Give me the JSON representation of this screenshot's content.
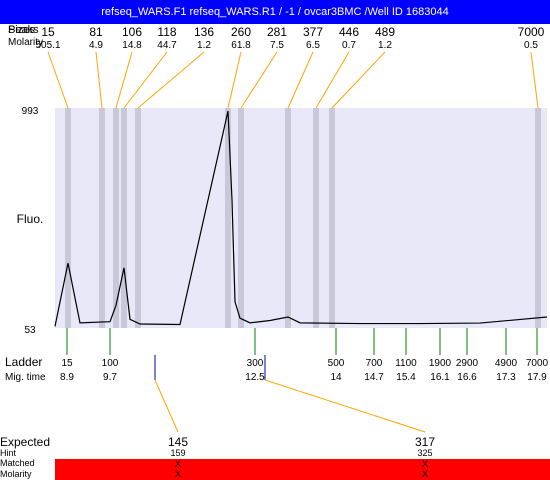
{
  "window": {
    "title": "refseq_WARS.F1  refseq_WARS.R1 / -1 / ovcar3BMC  /Well ID 1683044"
  },
  "header": {
    "sizes_label": "Sizes",
    "peaks_label": "Peaks",
    "molarity_label": "Molarity"
  },
  "peaks": [
    {
      "size": "15",
      "molarity": "505.1"
    },
    {
      "size": "81",
      "molarity": "4.9"
    },
    {
      "size": "106",
      "molarity": "14.8"
    },
    {
      "size": "118",
      "molarity": "44.7"
    },
    {
      "size": "136",
      "molarity": "1.2"
    },
    {
      "size": "260",
      "molarity": "61.8"
    },
    {
      "size": "281",
      "molarity": "7.5"
    },
    {
      "size": "377",
      "molarity": "6.5"
    },
    {
      "size": "446",
      "molarity": "0.7"
    },
    {
      "size": "489",
      "molarity": "1.2"
    },
    {
      "size": "7000",
      "molarity": "0.5"
    }
  ],
  "plot": {
    "y_axis_label": "Fluo.",
    "y_max_label": "993",
    "y_min_label": "53",
    "colors": {
      "background": "#e8e8f8",
      "trace": "#000000",
      "band": "#c8c8d8",
      "leader": "#ffa500",
      "ladder_tick": "#008000"
    }
  },
  "ladder": {
    "ladder_label": "Ladder",
    "migtime_label": "Mig. time",
    "markers": [
      {
        "size": "15",
        "time": "8.9"
      },
      {
        "size": "100",
        "time": "9.7"
      },
      {
        "size": "300",
        "time": "12.5"
      },
      {
        "size": "500",
        "time": "14"
      },
      {
        "size": "700",
        "time": "14.7"
      },
      {
        "size": "1100",
        "time": "15.4"
      },
      {
        "size": "1900",
        "time": "16.1"
      },
      {
        "size": "2900",
        "time": "16.6"
      },
      {
        "size": "4900",
        "time": "17.3"
      },
      {
        "size": "7000",
        "time": "17.9"
      }
    ]
  },
  "expected": {
    "expected_label": "Expected",
    "hint_label": "Hint",
    "matched_label": "Matched",
    "molarity_label": "Molarity",
    "items": [
      {
        "size": "145",
        "hint": "159",
        "matched": "X",
        "molarity": "X"
      },
      {
        "size": "317",
        "hint": "325",
        "matched": "X",
        "molarity": "X"
      }
    ],
    "bar_color": "#ff0000"
  },
  "chart_data": {
    "type": "line",
    "title": "",
    "xlabel": "Mig. time",
    "ylabel": "Fluo.",
    "ylim": [
      53,
      993
    ],
    "grid": false,
    "series": [
      {
        "x": [
          8.5,
          8.9,
          9.2,
          9.5,
          9.7,
          9.8,
          10.0,
          10.2,
          11.0,
          11.9,
          12.05,
          12.15,
          12.3,
          12.5,
          13.0,
          13.5,
          14.0,
          15.0,
          16.0,
          17.0,
          17.9
        ],
        "y": [
          60,
          330,
          75,
          80,
          150,
          310,
          90,
          70,
          68,
          980,
          600,
          165,
          95,
          75,
          85,
          100,
          75,
          72,
          72,
          74,
          100
        ]
      }
    ]
  }
}
